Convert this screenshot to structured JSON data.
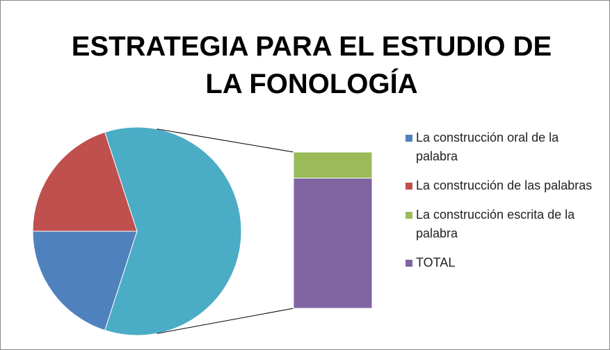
{
  "chart_data": {
    "type": "bar-of-pie",
    "title": "ESTRATEGIA PARA EL ESTUDIO DE LA FONOLOGÍA",
    "categories": [
      "La construcción oral de la palabra",
      "La construcción de las palabras",
      "La construcción escrita de la palabra",
      "TOTAL"
    ],
    "values": [
      20,
      20,
      10,
      50
    ],
    "colors": [
      "#4f81bd",
      "#c0504d",
      "#9bbb59",
      "#8064a2"
    ],
    "other_color": "#4bacc6",
    "pie_count": 2,
    "legend": "right"
  }
}
